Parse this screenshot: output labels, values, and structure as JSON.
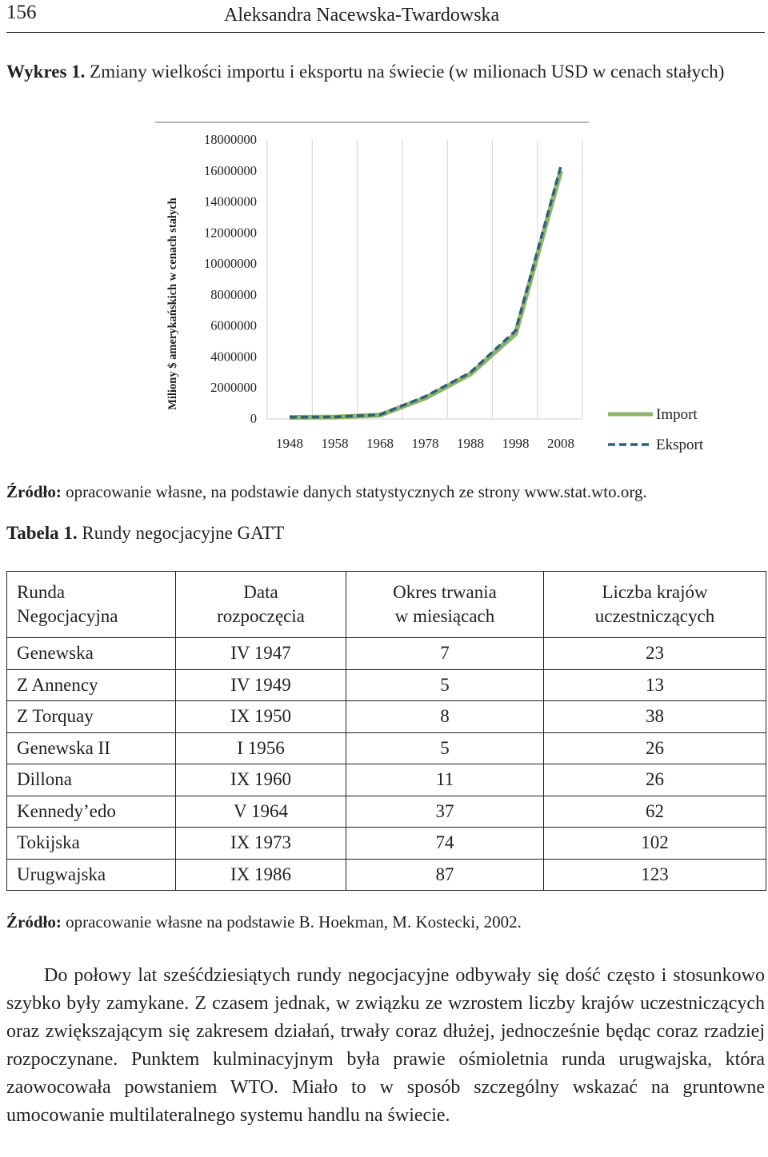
{
  "header": {
    "page_number": "156",
    "author": "Aleksandra Nacewska-Twardowska"
  },
  "figure": {
    "label": "Wykres 1.",
    "caption": "Zmiany wielkości importu i eksportu na świecie (w milionach USD w cenach stałych)",
    "source_label": "Źródło:",
    "source_text": "opracowanie własne, na podstawie danych statystycznych ze strony www.stat.wto.org."
  },
  "chart_data": {
    "type": "line",
    "title": "",
    "xlabel": "",
    "ylabel": "Miliony $ amerykańskich w cenach stałych",
    "x": [
      "1948",
      "1958",
      "1968",
      "1978",
      "1988",
      "1998",
      "2008"
    ],
    "y_ticks": [
      "0",
      "2000000",
      "4000000",
      "6000000",
      "8000000",
      "10000000",
      "12000000",
      "14000000",
      "16000000",
      "18000000"
    ],
    "ylim": [
      0,
      18000000
    ],
    "grid": "vertical",
    "legend": "right",
    "series": [
      {
        "name": "Import",
        "color": "#8db46a",
        "style": "solid",
        "values": [
          100000,
          120000,
          250000,
          1350000,
          2900000,
          5500000,
          16000000
        ]
      },
      {
        "name": "Eksport",
        "color": "#2e5f7a",
        "style": "dashed",
        "values": [
          110000,
          130000,
          280000,
          1450000,
          3000000,
          5700000,
          16300000
        ]
      }
    ]
  },
  "table": {
    "label": "Tabela 1.",
    "caption": "Rundy negocjacyjne GATT",
    "headers": [
      [
        "Runda",
        "Negocjacyjna"
      ],
      [
        "Data",
        "rozpoczęcia"
      ],
      [
        "Okres trwania",
        "w miesiącach"
      ],
      [
        "Liczba krajów",
        "uczestniczących"
      ]
    ],
    "rows": [
      [
        "Genewska",
        "IV 1947",
        "7",
        "23"
      ],
      [
        "Z Annency",
        "IV 1949",
        "5",
        "13"
      ],
      [
        "Z Torquay",
        "IX 1950",
        "8",
        "38"
      ],
      [
        "Genewska II",
        "I 1956",
        "5",
        "26"
      ],
      [
        "Dillona",
        "IX 1960",
        "11",
        "26"
      ],
      [
        "Kennedy’edo",
        "V 1964",
        "37",
        "62"
      ],
      [
        "Tokijska",
        "IX 1973",
        "74",
        "102"
      ],
      [
        "Urugwajska",
        "IX 1986",
        "87",
        "123"
      ]
    ],
    "source_label": "Źródło:",
    "source_text": "opracowanie własne na podstawie  B. Hoekman, M. Kostecki, 2002."
  },
  "paragraph": "Do połowy lat sześćdziesiątych rundy negocjacyjne odbywały się dość często i stosunkowo szybko były zamykane. Z czasem jednak, w związku ze wzrostem liczby krajów uczestniczących oraz zwiększającym się zakresem działań, trwały coraz dłużej, jednocześnie będąc coraz rzadziej rozpoczynane. Punktem kulminacyjnym była prawie ośmioletnia runda urugwajska, która zaowocowała powstaniem WTO. Miało to w sposób szczególny wskazać na gruntowne umocowanie multilateralnego systemu handlu na świecie."
}
